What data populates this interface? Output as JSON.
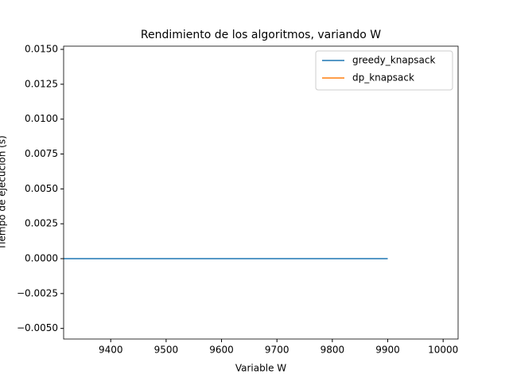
{
  "chart_data": {
    "type": "line",
    "title": "Rendimiento de los algoritmos, variando W",
    "x_label": "Variable W",
    "y_label": "Tiempo de ejecución (s)",
    "x": [
      9315,
      9400,
      9500,
      9600,
      9700,
      9800,
      9900
    ],
    "series": [
      {
        "name": "greedy_knapsack",
        "color": "#1f77b4",
        "values": [
          0,
          0,
          0,
          0,
          0,
          0,
          0
        ]
      },
      {
        "name": "dp_knapsack",
        "color": "#ff7f0e",
        "values": [
          null,
          null,
          null,
          null,
          null,
          null,
          null
        ]
      }
    ],
    "xlim": [
      9315,
      10027
    ],
    "xticks": [
      9400,
      9500,
      9600,
      9700,
      9800,
      9900,
      10000
    ],
    "ylim": [
      -0.00576,
      0.01523
    ],
    "yticks": [
      {
        "value": -0.005,
        "label": "−0.0050"
      },
      {
        "value": -0.0025,
        "label": "−0.0025"
      },
      {
        "value": 0,
        "label": "0.0000"
      },
      {
        "value": 0.0025,
        "label": "0.0025"
      },
      {
        "value": 0.005,
        "label": "0.0050"
      },
      {
        "value": 0.0075,
        "label": "0.0075"
      },
      {
        "value": 0.01,
        "label": "0.0100"
      },
      {
        "value": 0.0125,
        "label": "0.0125"
      },
      {
        "value": 0.015,
        "label": "0.0150"
      }
    ],
    "legend": "upper right"
  }
}
